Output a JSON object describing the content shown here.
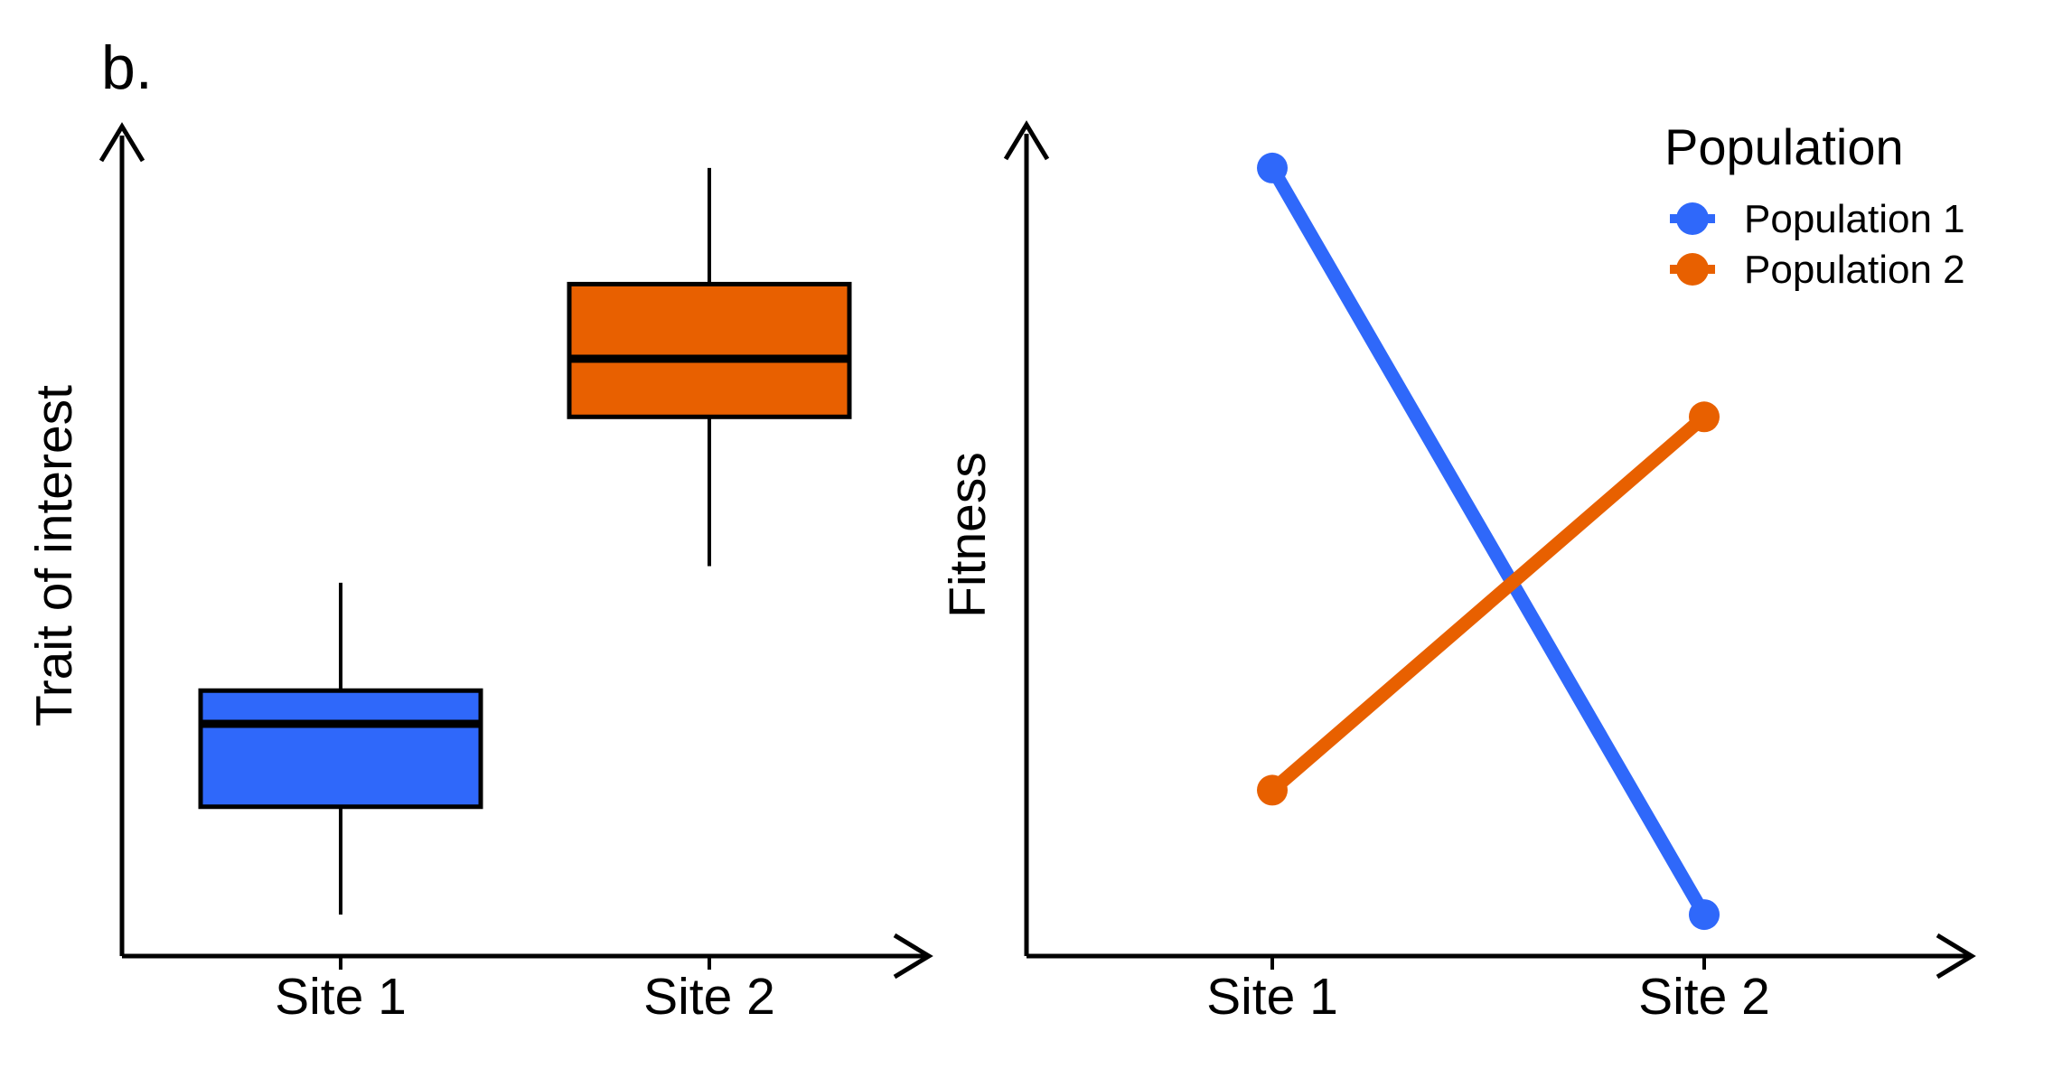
{
  "figure": {
    "panel_label": "b.",
    "background": "#ffffff",
    "axis_color": "#000000",
    "colors": {
      "population1": "#2F68FA",
      "population2": "#E86000"
    }
  },
  "chart_data": [
    {
      "type": "boxplot",
      "title": "",
      "xlabel": "",
      "ylabel": "Trait of interest",
      "categories": [
        "Site 1",
        "Site 2"
      ],
      "ylim": [
        0,
        100
      ],
      "units": "relative (axis unlabeled, arrow axes)",
      "grid": false,
      "series": [
        {
          "name": "Site 1",
          "color": "#2F68FA",
          "whisker_low": 5,
          "q1": 18,
          "median": 28,
          "q3": 32,
          "whisker_high": 45
        },
        {
          "name": "Site 2",
          "color": "#E86000",
          "whisker_low": 47,
          "q1": 65,
          "median": 72,
          "q3": 81,
          "whisker_high": 95
        }
      ]
    },
    {
      "type": "line",
      "title": "",
      "xlabel": "",
      "ylabel": "Fitness",
      "categories": [
        "Site 1",
        "Site 2"
      ],
      "ylim": [
        0,
        100
      ],
      "units": "relative (axis unlabeled, arrow axes)",
      "grid": false,
      "legend": {
        "title": "Population",
        "position": "top-right"
      },
      "series": [
        {
          "name": "Population 1",
          "color": "#2F68FA",
          "values": [
            95,
            5
          ]
        },
        {
          "name": "Population 2",
          "color": "#E86000",
          "values": [
            20,
            65
          ]
        }
      ]
    }
  ]
}
